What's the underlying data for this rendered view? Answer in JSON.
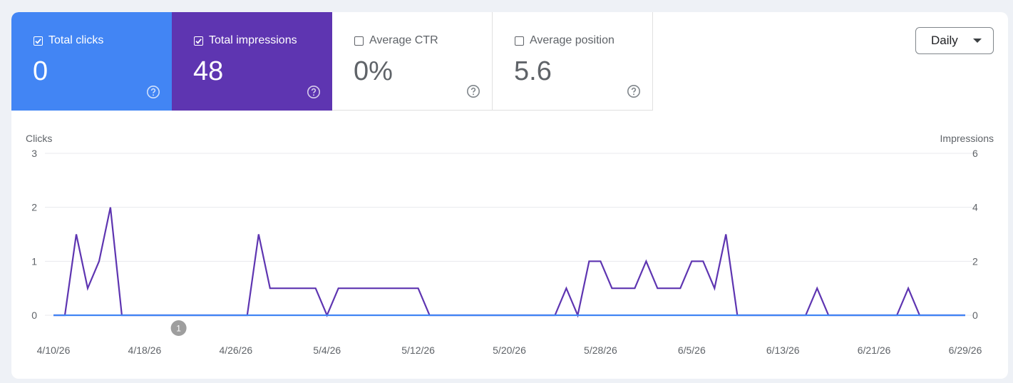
{
  "metrics": [
    {
      "label": "Total clicks",
      "value": "0",
      "checked": true
    },
    {
      "label": "Total impressions",
      "value": "48",
      "checked": true
    },
    {
      "label": "Average CTR",
      "value": "0%",
      "checked": false
    },
    {
      "label": "Average position",
      "value": "5.6",
      "checked": false
    }
  ],
  "period_selector": {
    "label": "Daily"
  },
  "annotation_badge": "1",
  "chart_data": {
    "type": "line",
    "left_axis_label": "Clicks",
    "right_axis_label": "Impressions",
    "left_ticks": [
      "0",
      "1",
      "2",
      "3"
    ],
    "right_ticks": [
      "0",
      "2",
      "4",
      "6"
    ],
    "left_ylim": [
      0,
      3
    ],
    "right_ylim": [
      0,
      6
    ],
    "x_tick_labels": [
      "4/10/26",
      "4/18/26",
      "4/26/26",
      "5/4/26",
      "5/12/26",
      "5/20/26",
      "5/28/26",
      "6/5/26",
      "6/13/26",
      "6/21/26",
      "6/29/26"
    ],
    "x": [
      "4/10/26",
      "4/11/26",
      "4/12/26",
      "4/13/26",
      "4/14/26",
      "4/15/26",
      "4/16/26",
      "4/17/26",
      "4/18/26",
      "4/19/26",
      "4/20/26",
      "4/21/26",
      "4/22/26",
      "4/23/26",
      "4/24/26",
      "4/25/26",
      "4/26/26",
      "4/27/26",
      "4/28/26",
      "4/29/26",
      "4/30/26",
      "5/1/26",
      "5/2/26",
      "5/3/26",
      "5/4/26",
      "5/5/26",
      "5/6/26",
      "5/7/26",
      "5/8/26",
      "5/9/26",
      "5/10/26",
      "5/11/26",
      "5/12/26",
      "5/13/26",
      "5/14/26",
      "5/15/26",
      "5/16/26",
      "5/17/26",
      "5/18/26",
      "5/19/26",
      "5/20/26",
      "5/21/26",
      "5/22/26",
      "5/23/26",
      "5/24/26",
      "5/25/26",
      "5/26/26",
      "5/27/26",
      "5/28/26",
      "5/29/26",
      "5/30/26",
      "5/31/26",
      "6/1/26",
      "6/2/26",
      "6/3/26",
      "6/4/26",
      "6/5/26",
      "6/6/26",
      "6/7/26",
      "6/8/26",
      "6/9/26",
      "6/10/26",
      "6/11/26",
      "6/12/26",
      "6/13/26",
      "6/14/26",
      "6/15/26",
      "6/16/26",
      "6/17/26",
      "6/18/26",
      "6/19/26",
      "6/20/26",
      "6/21/26",
      "6/22/26",
      "6/23/26",
      "6/24/26",
      "6/25/26",
      "6/26/26",
      "6/27/26",
      "6/28/26",
      "6/29/26"
    ],
    "series": [
      {
        "name": "Clicks",
        "axis": "left",
        "color": "#4285f4",
        "values": [
          0,
          0,
          0,
          0,
          0,
          0,
          0,
          0,
          0,
          0,
          0,
          0,
          0,
          0,
          0,
          0,
          0,
          0,
          0,
          0,
          0,
          0,
          0,
          0,
          0,
          0,
          0,
          0,
          0,
          0,
          0,
          0,
          0,
          0,
          0,
          0,
          0,
          0,
          0,
          0,
          0,
          0,
          0,
          0,
          0,
          0,
          0,
          0,
          0,
          0,
          0,
          0,
          0,
          0,
          0,
          0,
          0,
          0,
          0,
          0,
          0,
          0,
          0,
          0,
          0,
          0,
          0,
          0,
          0,
          0,
          0,
          0,
          0,
          0,
          0,
          0,
          0,
          0,
          0,
          0,
          0
        ]
      },
      {
        "name": "Impressions",
        "axis": "right",
        "color": "#5e35b1",
        "values": [
          0,
          0,
          3,
          1,
          2,
          4,
          0,
          0,
          0,
          0,
          0,
          0,
          0,
          0,
          0,
          0,
          0,
          0,
          3,
          1,
          1,
          1,
          1,
          1,
          0,
          1,
          1,
          1,
          1,
          1,
          1,
          1,
          1,
          0,
          0,
          0,
          0,
          0,
          0,
          0,
          0,
          0,
          0,
          0,
          0,
          1,
          0,
          2,
          2,
          1,
          1,
          1,
          2,
          1,
          1,
          1,
          2,
          2,
          1,
          3,
          0,
          0,
          0,
          0,
          0,
          0,
          0,
          1,
          0,
          0,
          0,
          0,
          0,
          0,
          0,
          1,
          0,
          0,
          0,
          0,
          0
        ]
      }
    ],
    "colors": {
      "clicks": "#4285f4",
      "impressions": "#5e35b1",
      "grid": "#e8eaed"
    }
  }
}
